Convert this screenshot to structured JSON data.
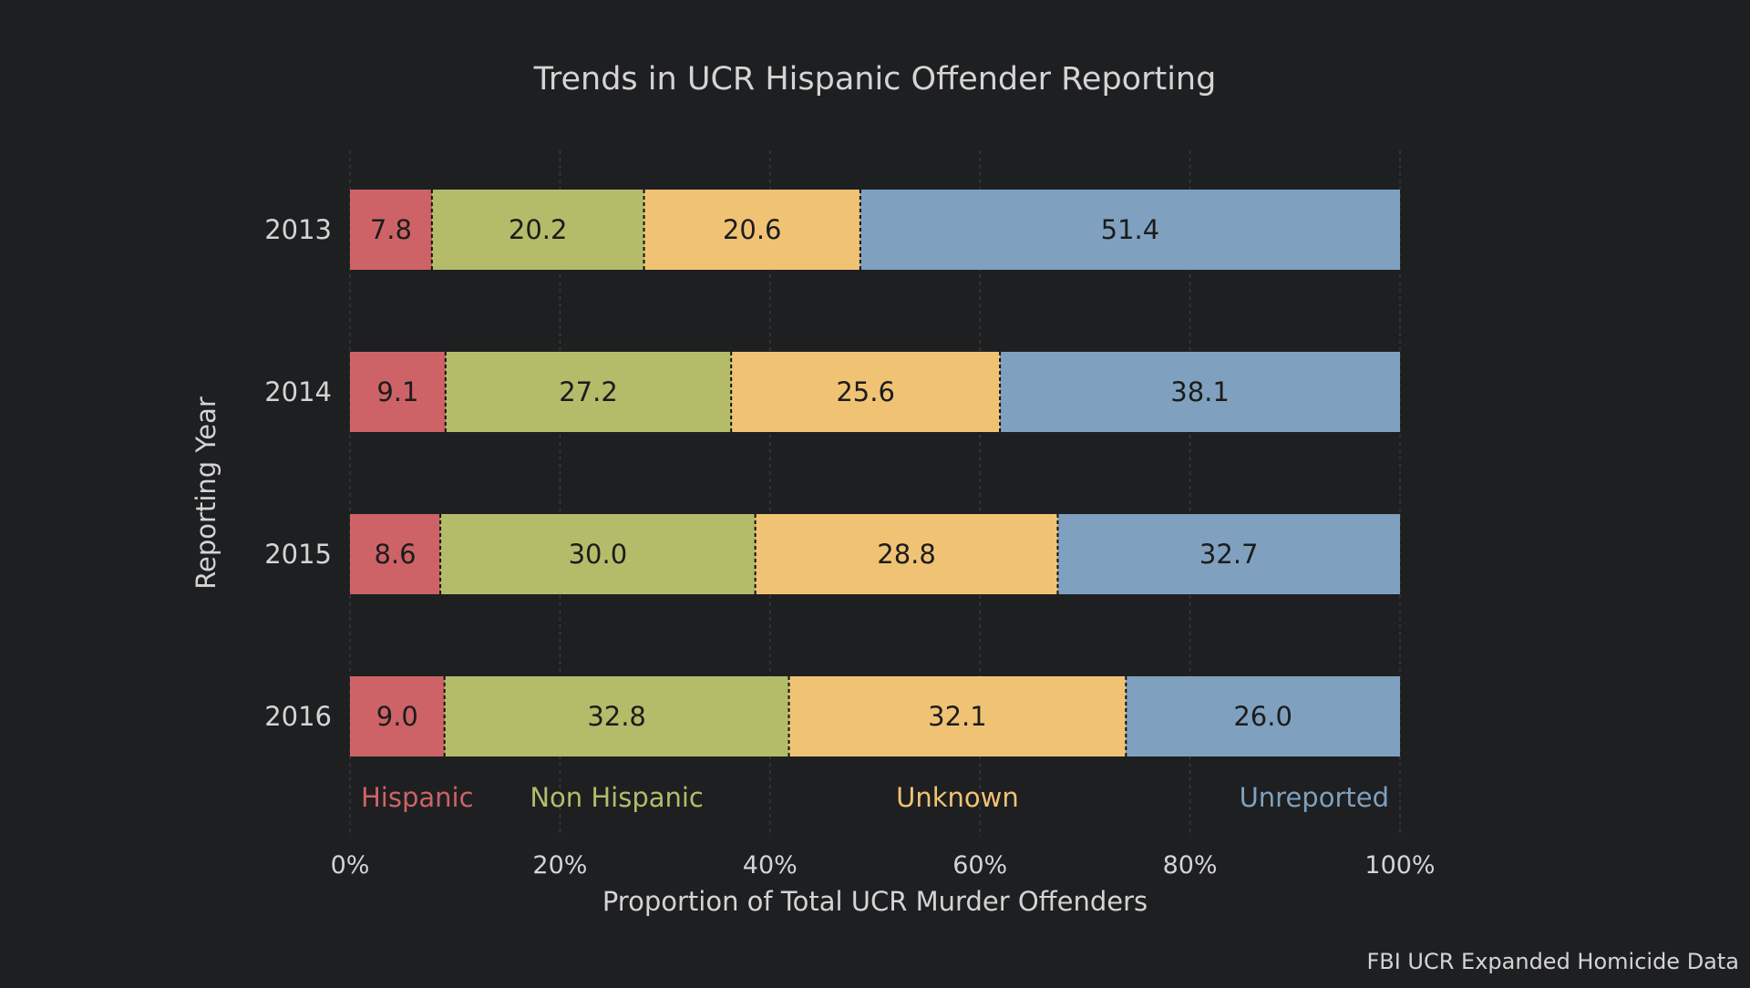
{
  "chart_data": {
    "type": "bar",
    "orientation": "horizontal",
    "stacked": true,
    "title": "Trends in UCR Hispanic Offender Reporting",
    "xlabel": "Proportion of Total UCR Murder Offenders",
    "ylabel": "Reporting Year",
    "source": "FBI UCR Expanded Homicide Data",
    "xlim": [
      0,
      100
    ],
    "x_ticks": [
      {
        "value": 0,
        "label": "0%"
      },
      {
        "value": 20,
        "label": "20%"
      },
      {
        "value": 40,
        "label": "40%"
      },
      {
        "value": 60,
        "label": "60%"
      },
      {
        "value": 80,
        "label": "80%"
      },
      {
        "value": 100,
        "label": "100%"
      }
    ],
    "categories": [
      "2013",
      "2014",
      "2015",
      "2016"
    ],
    "series": [
      {
        "name": "Hispanic",
        "color": "#cd6367",
        "values": [
          7.8,
          9.1,
          8.6,
          9.0
        ],
        "labels": [
          "7.8",
          "9.1",
          "8.6",
          "9.0"
        ]
      },
      {
        "name": "Non Hispanic",
        "color": "#b4bc6a",
        "values": [
          20.2,
          27.2,
          30.0,
          32.8
        ],
        "labels": [
          "20.2",
          "27.2",
          "30.0",
          "32.8"
        ]
      },
      {
        "name": "Unknown",
        "color": "#f0c374",
        "values": [
          20.6,
          25.6,
          28.8,
          32.1
        ],
        "labels": [
          "20.6",
          "25.6",
          "28.8",
          "32.1"
        ]
      },
      {
        "name": "Unreported",
        "color": "#7fa1bf",
        "values": [
          51.4,
          38.1,
          32.7,
          26.0
        ],
        "labels": [
          "51.4",
          "38.1",
          "32.7",
          "26.0"
        ]
      }
    ],
    "legend_placement": "inline-bottom",
    "grid": true
  },
  "colors": {
    "background": "#1e1f21",
    "text": "#d4d4d4",
    "grid": "#3a3b3e",
    "bar_label": "#1c1c1c",
    "divider": "#111111"
  }
}
